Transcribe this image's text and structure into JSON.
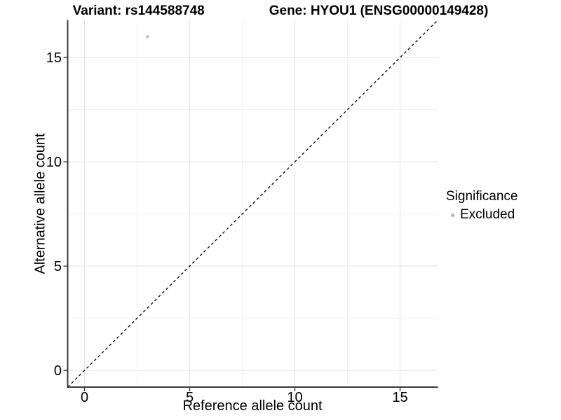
{
  "header": {
    "title_parts": [
      "Variant: rs144588748",
      "Gene: HYOU1 (ENSG00000149428)"
    ]
  },
  "chart_data": {
    "type": "scatter",
    "title_parts": [
      "Variant: rs144588748",
      "Gene: HYOU1 (ENSG00000149428)"
    ],
    "xlabel": "Reference allele count",
    "ylabel": "Alternative allele count",
    "points": [
      {
        "x": 3,
        "y": 16,
        "group": "Excluded"
      }
    ],
    "xlim": [
      -0.8,
      16.8
    ],
    "ylim": [
      -0.8,
      16.8
    ],
    "x_major_ticks": [
      0,
      5,
      10,
      15
    ],
    "y_major_ticks": [
      0,
      5,
      10,
      15
    ],
    "x_minor_ticks": [
      2.5,
      7.5,
      12.5
    ],
    "y_minor_ticks": [
      2.5,
      7.5,
      12.5
    ],
    "grid": "major and minor gridlines, white background",
    "reference_line": {
      "type": "identity",
      "slope": 1,
      "intercept": 0,
      "style": "dashed"
    },
    "legend": {
      "title": "Significance",
      "position": "right",
      "entries": [
        {
          "label": "Excluded",
          "color": "#bebebe"
        }
      ]
    }
  },
  "colors": {
    "background": "#ffffff",
    "point": "#c2c2c2",
    "legend_key": "#b4b4b4",
    "grid_major": "#e3e3e3",
    "grid_minor": "#f1f1f1",
    "axis": "#3a3a3a",
    "reference_line": "#000000",
    "text": "#000000"
  }
}
